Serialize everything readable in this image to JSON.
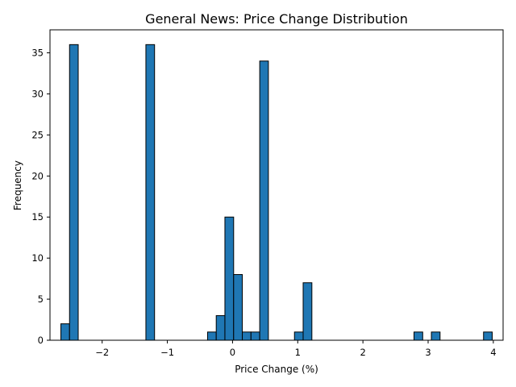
{
  "chart_data": {
    "type": "bar",
    "title": "General News: Price Change Distribution",
    "xlabel": "Price Change (%)",
    "ylabel": "Frequency",
    "xlim": [
      -2.8,
      4.15
    ],
    "ylim": [
      0,
      37.8
    ],
    "x_ticks": [
      -2,
      -1,
      0,
      1,
      2,
      3,
      4
    ],
    "x_tick_labels": [
      "−2",
      "−1",
      "0",
      "1",
      "2",
      "3",
      "4"
    ],
    "y_ticks": [
      0,
      5,
      10,
      15,
      20,
      25,
      30,
      35
    ],
    "y_tick_labels": [
      "0",
      "5",
      "10",
      "15",
      "20",
      "25",
      "30",
      "35"
    ],
    "bar_color": "#1f77b4",
    "edge_color": "#000000",
    "grid": false,
    "bins": [
      {
        "x0": -2.633,
        "x1": -2.5,
        "count": 2
      },
      {
        "x0": -2.5,
        "x1": -2.367,
        "count": 36
      },
      {
        "x0": -1.329,
        "x1": -1.196,
        "count": 36
      },
      {
        "x0": -0.383,
        "x1": -0.25,
        "count": 1
      },
      {
        "x0": -0.25,
        "x1": -0.117,
        "count": 3
      },
      {
        "x0": -0.117,
        "x1": 0.017,
        "count": 15
      },
      {
        "x0": 0.017,
        "x1": 0.15,
        "count": 8
      },
      {
        "x0": 0.15,
        "x1": 0.283,
        "count": 1
      },
      {
        "x0": 0.283,
        "x1": 0.417,
        "count": 1
      },
      {
        "x0": 0.417,
        "x1": 0.55,
        "count": 34
      },
      {
        "x0": 0.95,
        "x1": 1.083,
        "count": 1
      },
      {
        "x0": 1.083,
        "x1": 1.217,
        "count": 7
      },
      {
        "x0": 2.783,
        "x1": 2.917,
        "count": 1
      },
      {
        "x0": 3.05,
        "x1": 3.183,
        "count": 1
      },
      {
        "x0": 3.85,
        "x1": 3.983,
        "count": 1
      }
    ]
  }
}
